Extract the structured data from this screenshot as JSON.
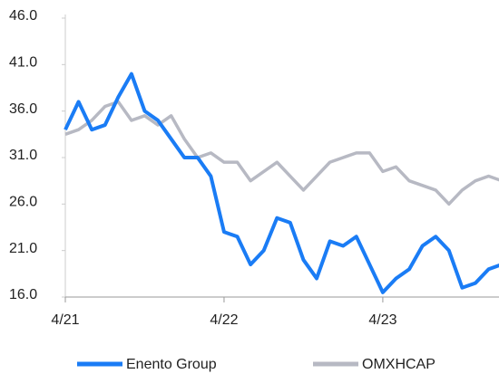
{
  "chart_data": {
    "type": "line",
    "x": [
      "4/21",
      "5/21",
      "6/21",
      "7/21",
      "8/21",
      "9/21",
      "10/21",
      "11/21",
      "12/21",
      "1/22",
      "2/22",
      "3/22",
      "4/22",
      "5/22",
      "6/22",
      "7/22",
      "8/22",
      "9/22",
      "10/22",
      "11/22",
      "12/22",
      "1/23",
      "2/23",
      "3/23",
      "4/23",
      "5/23",
      "6/23",
      "7/23",
      "8/23",
      "9/23",
      "10/23",
      "11/23",
      "12/23",
      "1/24"
    ],
    "series": [
      {
        "name": "Enento Group",
        "color": "#1a7cf5",
        "values": [
          34,
          37,
          34,
          34.5,
          37.5,
          40,
          36,
          35,
          33,
          31,
          31,
          29,
          23,
          22.5,
          19.5,
          21,
          24.5,
          24,
          20,
          18,
          22,
          21.5,
          22.5,
          19.5,
          16.5,
          18,
          19,
          21.5,
          22.5,
          21,
          17,
          17.5,
          19,
          19.5
        ]
      },
      {
        "name": "OMXHCAP",
        "color": "#b7b9c3",
        "values": [
          33.5,
          34,
          35,
          36.5,
          37,
          35,
          35.5,
          34.5,
          35.5,
          33,
          31,
          31.5,
          30.5,
          30.5,
          28.5,
          29.5,
          30.5,
          29,
          27.5,
          29,
          30.5,
          31,
          31.5,
          31.5,
          29.5,
          30,
          28.5,
          28,
          27.5,
          26,
          27.5,
          28.5,
          29,
          28.5
        ]
      }
    ],
    "xticks": [
      "4/21",
      "4/22",
      "4/23"
    ],
    "ylim": [
      16,
      46
    ],
    "yticks": [
      {
        "value": 16,
        "label": "16.0"
      },
      {
        "value": 21,
        "label": "21.0"
      },
      {
        "value": 26,
        "label": "26.0"
      },
      {
        "value": 31,
        "label": "31.0"
      },
      {
        "value": 36,
        "label": "36.0"
      },
      {
        "value": 41,
        "label": "41.0"
      },
      {
        "value": 46,
        "label": "46.0"
      }
    ],
    "legend": "bottom"
  }
}
